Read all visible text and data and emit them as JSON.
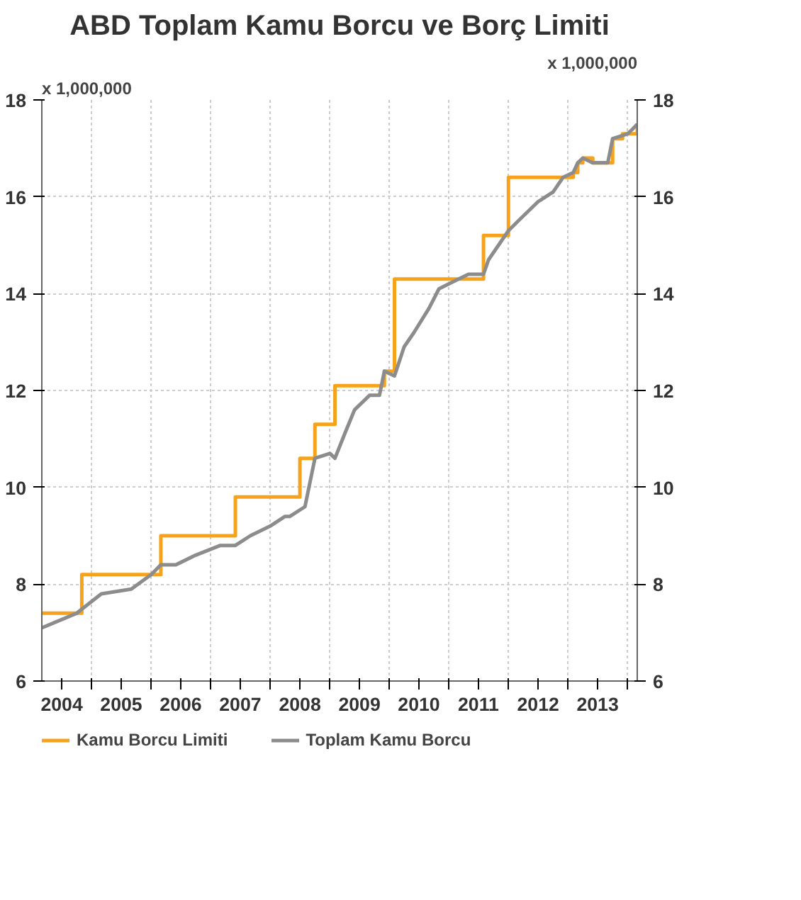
{
  "chart_data": {
    "type": "line",
    "title": "ABD Toplam Kamu Borcu ve Borç Limiti",
    "ylabel": "x 1,000,000",
    "y2label": "x 1,000,000",
    "xlim": [
      "2004-03",
      "2014-03"
    ],
    "xticks": [
      {
        "value": "2004-07",
        "label": "2004"
      },
      {
        "value": "2005-01",
        "label": null
      },
      {
        "value": "2005-07",
        "label": "2005"
      },
      {
        "value": "2006-01",
        "label": null
      },
      {
        "value": "2006-07",
        "label": "2006"
      },
      {
        "value": "2007-01",
        "label": null
      },
      {
        "value": "2007-07",
        "label": "2007"
      },
      {
        "value": "2008-01",
        "label": null
      },
      {
        "value": "2008-07",
        "label": "2008"
      },
      {
        "value": "2009-01",
        "label": null
      },
      {
        "value": "2009-07",
        "label": "2009"
      },
      {
        "value": "2010-01",
        "label": null
      },
      {
        "value": "2010-07",
        "label": "2010"
      },
      {
        "value": "2011-01",
        "label": null
      },
      {
        "value": "2011-07",
        "label": "2011"
      },
      {
        "value": "2012-01",
        "label": null
      },
      {
        "value": "2012-07",
        "label": "2012"
      },
      {
        "value": "2013-01",
        "label": null
      },
      {
        "value": "2013-07",
        "label": "2013"
      },
      {
        "value": "2014-01",
        "label": null
      }
    ],
    "ylim": [
      6,
      18
    ],
    "yticks": [
      6,
      8,
      10,
      12,
      14,
      16,
      18
    ],
    "y2lim": [
      6,
      18
    ],
    "y2ticks": [
      6,
      8,
      10,
      12,
      14,
      16,
      18
    ],
    "grid": true,
    "legend": "bottom",
    "series": [
      {
        "name": "Kamu Borcu Limiti",
        "type": "step",
        "color": "#f7a21b",
        "x": [
          "2004-03",
          "2004-11",
          "2006-03",
          "2007-06",
          "2008-07",
          "2008-10",
          "2009-02",
          "2009-12",
          "2010-02",
          "2011-08",
          "2012-01",
          "2012-12",
          "2013-02",
          "2013-03",
          "2013-04",
          "2013-06",
          "2013-10",
          "2013-12",
          "2014-02",
          "2014-03"
        ],
        "values": [
          7.4,
          8.2,
          9.0,
          9.8,
          10.6,
          11.3,
          12.1,
          12.4,
          14.3,
          15.2,
          16.4,
          16.4,
          16.5,
          16.7,
          16.8,
          16.7,
          17.2,
          17.3,
          17.3,
          17.5
        ]
      },
      {
        "name": "Toplam Kamu Borcu",
        "color": "#8c8c8c",
        "x": [
          "2004-03",
          "2004-10",
          "2005-03",
          "2005-09",
          "2006-01",
          "2006-03",
          "2006-06",
          "2006-10",
          "2007-03",
          "2007-06",
          "2007-09",
          "2008-01",
          "2008-04",
          "2008-05",
          "2008-08",
          "2008-10",
          "2009-01",
          "2009-02",
          "2009-04",
          "2009-06",
          "2009-09",
          "2009-11",
          "2009-12",
          "2010-02",
          "2010-04",
          "2010-06",
          "2010-09",
          "2010-11",
          "2011-03",
          "2011-05",
          "2011-08",
          "2011-09",
          "2012-01",
          "2012-03",
          "2012-07",
          "2012-10",
          "2012-12",
          "2013-02",
          "2013-03",
          "2013-04",
          "2013-06",
          "2013-09",
          "2013-10",
          "2014-01",
          "2014-02",
          "2014-03"
        ],
        "values": [
          7.1,
          7.4,
          7.8,
          7.9,
          8.2,
          8.4,
          8.4,
          8.6,
          8.8,
          8.8,
          9.0,
          9.2,
          9.4,
          9.4,
          9.6,
          10.6,
          10.7,
          10.6,
          11.1,
          11.6,
          11.9,
          11.9,
          12.4,
          12.3,
          12.9,
          13.2,
          13.7,
          14.1,
          14.3,
          14.4,
          14.4,
          14.7,
          15.3,
          15.5,
          15.9,
          16.1,
          16.4,
          16.5,
          16.7,
          16.8,
          16.7,
          16.7,
          17.2,
          17.3,
          17.4,
          17.5
        ]
      }
    ]
  }
}
